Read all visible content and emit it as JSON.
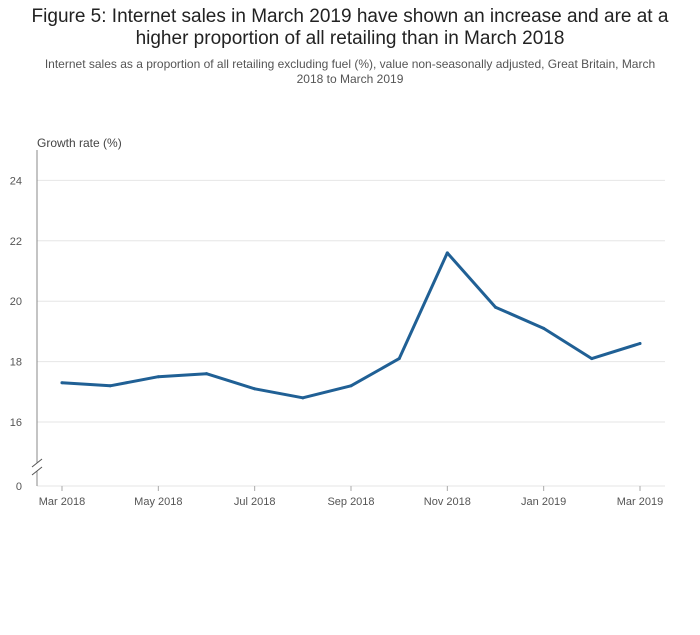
{
  "chart_data": {
    "type": "line",
    "title": "Figure 5: Internet sales in March 2019 have shown an increase and are at a higher proportion of all retailing than in March 2018",
    "subtitle": "Internet sales as a proportion of all retailing excluding fuel (%), value non-seasonally adjusted, Great Britain, March 2018 to March 2019",
    "ylabel": "Growth rate (%)",
    "xlabel": "",
    "y_axis_broken": true,
    "ylim": [
      15,
      25
    ],
    "yticks": [
      16,
      18,
      20,
      22,
      24
    ],
    "ytick_labels": [
      "16",
      "18",
      "20",
      "22",
      "24"
    ],
    "y_zero_label": "0",
    "categories": [
      "Mar 2018",
      "Apr 2018",
      "May 2018",
      "Jun 2018",
      "Jul 2018",
      "Aug 2018",
      "Sep 2018",
      "Oct 2018",
      "Nov 2018",
      "Dec 2018",
      "Jan 2019",
      "Feb 2019",
      "Mar 2019"
    ],
    "xtick_labels": [
      "Mar 2018",
      "",
      "May 2018",
      "",
      "Jul 2018",
      "",
      "Sep 2018",
      "",
      "Nov 2018",
      "",
      "Jan 2019",
      "",
      "Mar 2019"
    ],
    "series": [
      {
        "values": [
          17.3,
          17.2,
          17.5,
          17.6,
          17.1,
          16.8,
          17.2,
          18.1,
          21.6,
          19.8,
          19.1,
          18.1,
          18.6
        ]
      }
    ],
    "grid": true,
    "colors": {
      "line": "#206095",
      "grid": "#e6e6e6",
      "axis": "#888888"
    }
  }
}
